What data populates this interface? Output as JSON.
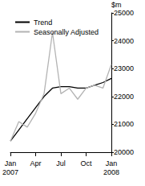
{
  "chart_data": {
    "type": "line",
    "y_label": "$m",
    "categories": [
      "Jan\n2007",
      null,
      null,
      "Apr",
      null,
      null,
      "Jul",
      null,
      null,
      "Oct",
      null,
      null,
      "Jan\n2008"
    ],
    "series": [
      {
        "name": "Trend",
        "color": "#000000",
        "values": [
          20400,
          20800,
          21200,
          21600,
          22000,
          22300,
          22350,
          22350,
          22300,
          22300,
          22400,
          22500,
          22650
        ]
      },
      {
        "name": "Seasonally Adjusted",
        "color": "#b3b3b3",
        "values": [
          20400,
          21100,
          20900,
          21400,
          22100,
          24300,
          22100,
          22300,
          21900,
          22300,
          22400,
          22300,
          23150
        ]
      }
    ],
    "ylim": [
      20000,
      25000
    ],
    "yticks": [
      20000,
      21000,
      22000,
      23000,
      24000,
      25000
    ],
    "grid": false,
    "legend": "top-left"
  }
}
